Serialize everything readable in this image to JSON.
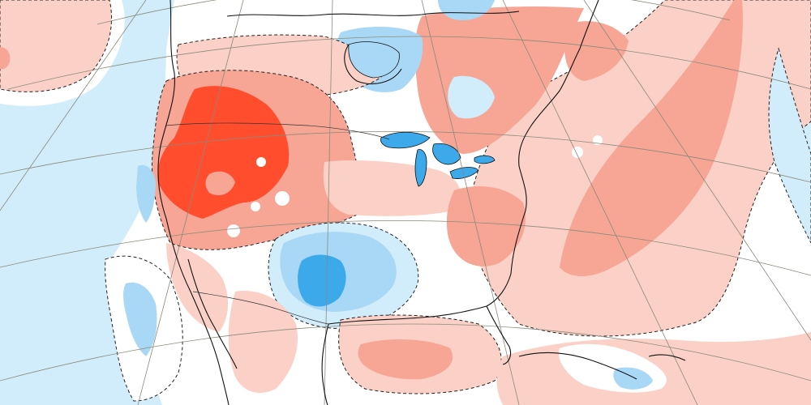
{
  "map": {
    "type": "temperature-anomaly",
    "projection": "polar-stereographic",
    "region": "North America",
    "labels": [],
    "palette": {
      "strong_warm": "#ff4d2e",
      "warm": "#f7a595",
      "mild_warm": "#fbd0c6",
      "neutral": "#ffffff",
      "mild_cool": "#d1ecfb",
      "cool": "#a9d8f6",
      "strong_cool": "#3ba9ea",
      "coastline": "#111111",
      "graticule": "#8a8a7a"
    },
    "contour_style": "dashed"
  }
}
